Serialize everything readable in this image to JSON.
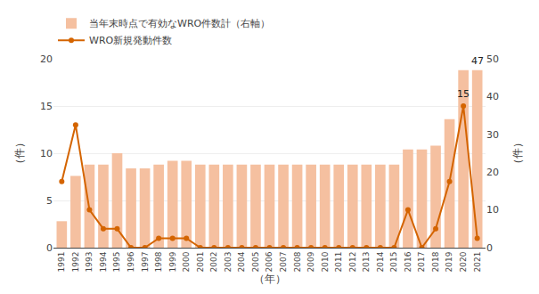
{
  "chart_data": {
    "type": "bar",
    "x": [
      1991,
      1992,
      1993,
      1994,
      1995,
      1996,
      1997,
      1998,
      1999,
      2000,
      2001,
      2002,
      2003,
      2004,
      2005,
      2006,
      2007,
      2008,
      2009,
      2010,
      2011,
      2012,
      2013,
      2014,
      2015,
      2016,
      2017,
      2018,
      2019,
      2020,
      2021
    ],
    "series": [
      {
        "name": "当年末時点で有効なWRO件数計（右軸）",
        "type": "bar",
        "axis": "y2",
        "color": "#f5c0a0",
        "values": [
          7,
          19,
          22,
          22,
          25,
          21,
          21,
          22,
          23,
          23,
          22,
          22,
          22,
          22,
          22,
          22,
          22,
          22,
          22,
          22,
          22,
          22,
          22,
          22,
          22,
          26,
          26,
          27,
          34,
          47,
          47
        ]
      },
      {
        "name": "WRO新規発動件数",
        "type": "line",
        "color": "#d46400",
        "marker": "circle",
        "values": [
          7,
          13,
          4,
          2,
          2,
          0,
          0,
          1,
          1,
          1,
          0,
          0,
          0,
          0,
          0,
          0,
          0,
          0,
          0,
          0,
          0,
          0,
          0,
          0,
          0,
          4,
          0,
          2,
          7,
          15,
          1
        ]
      }
    ],
    "xlabel": "（年）",
    "ylabel": "（件）",
    "y2label": "（件）",
    "xlim": [
      1990.4,
      2021.6
    ],
    "xticks": [
      1991,
      1992,
      1993,
      1994,
      1995,
      1996,
      1997,
      1998,
      1999,
      2000,
      2001,
      2002,
      2003,
      2004,
      2005,
      2006,
      2007,
      2008,
      2009,
      2010,
      2011,
      2012,
      2013,
      2014,
      2015,
      2016,
      2017,
      2018,
      2019,
      2020,
      2021
    ],
    "ylim": [
      0,
      20
    ],
    "yticks": [
      0,
      5,
      10,
      15,
      20
    ],
    "y2lim": [
      0,
      50
    ],
    "y2ticks": [
      0,
      10,
      20,
      30,
      40,
      50
    ],
    "grid": true,
    "legend": "top",
    "annotations": [
      {
        "text": "47",
        "x": 2021,
        "y": 47,
        "axis": "y2"
      },
      {
        "text": "15",
        "x": 2020,
        "y": 15
      }
    ]
  }
}
